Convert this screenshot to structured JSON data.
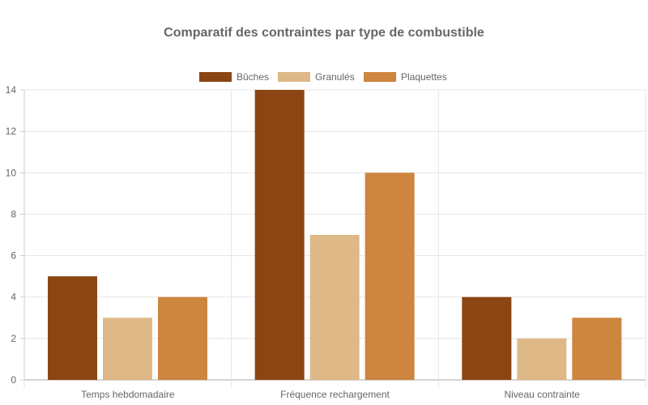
{
  "chart_data": {
    "type": "bar",
    "title": "Comparatif des contraintes par type de combustible",
    "categories": [
      "Temps hebdomadaire",
      "Fréquence rechargement",
      "Niveau contrainte"
    ],
    "series": [
      {
        "name": "Bûches",
        "values": [
          5,
          14,
          4
        ],
        "color": "#8B4513"
      },
      {
        "name": "Granulés",
        "values": [
          3,
          7,
          2
        ],
        "color": "#DEB887"
      },
      {
        "name": "Plaquettes",
        "values": [
          4,
          10,
          3
        ],
        "color": "#CD853F"
      }
    ],
    "ylim": [
      0,
      14
    ],
    "yticks": [
      0,
      2,
      4,
      6,
      8,
      10,
      12,
      14
    ],
    "grid": true,
    "legend": "top"
  }
}
